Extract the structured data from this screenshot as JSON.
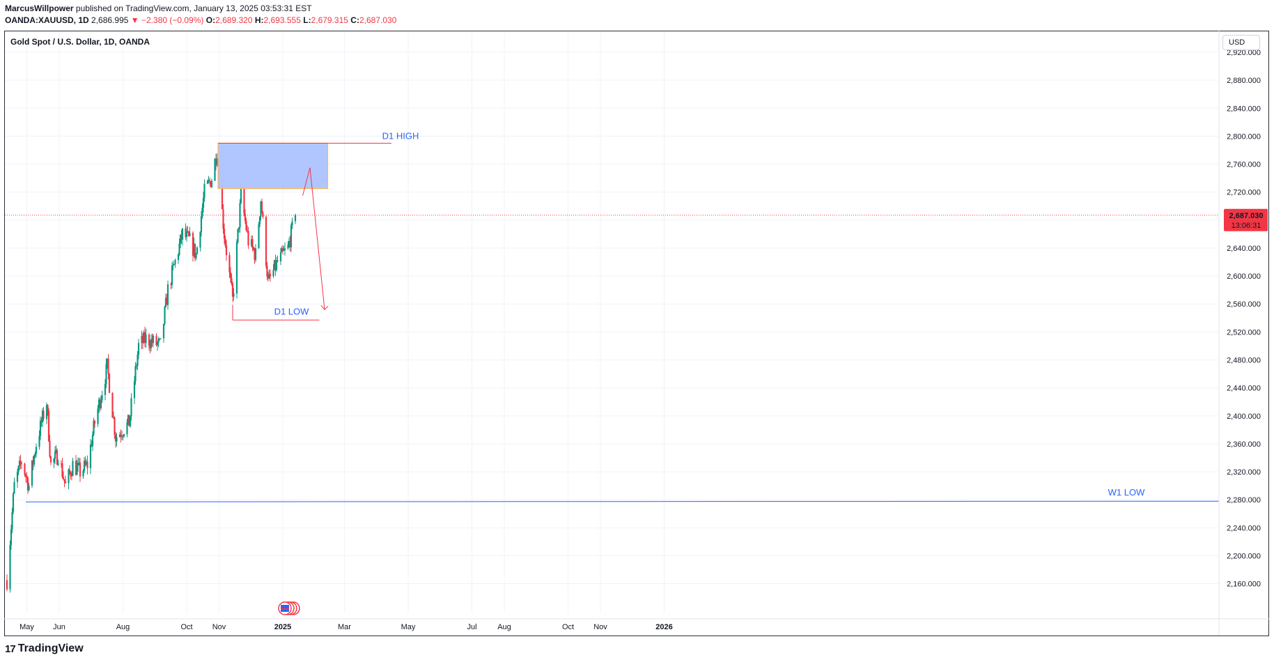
{
  "header": {
    "author": "MarcusWillpower",
    "published_text": "published on TradingView.com, January 13, 2025 03:53:31 EST",
    "symbol": "OANDA:XAUUSD, 1D",
    "price": "2,686.995",
    "change": "−2.380 (−0.09%)",
    "open_label": "O:",
    "open": "2,689.320",
    "high_label": "H:",
    "high": "2,693.555",
    "low_label": "L:",
    "low": "2,679.315",
    "close_label": "C:",
    "close": "2,687.030"
  },
  "chart_title": "Gold Spot / U.S. Dollar, 1D, OANDA",
  "currency_button": "USD",
  "price_tag": {
    "price": "2,687.030",
    "countdown": "13:06:31"
  },
  "brand": {
    "logo": "17",
    "name": "TradingView"
  },
  "colors": {
    "up": "#089981",
    "down": "#f23645",
    "accent": "#2962ff",
    "zone": "#adc3ff"
  },
  "chart_data": {
    "type": "candlestick",
    "title": "Gold Spot / U.S. Dollar, 1D, OANDA",
    "ylim": [
      2140,
      2940
    ],
    "y_ticks": [
      "2,160.000",
      "2,200.000",
      "2,240.000",
      "2,280.000",
      "2,320.000",
      "2,360.000",
      "2,400.000",
      "2,440.000",
      "2,480.000",
      "2,520.000",
      "2,560.000",
      "2,600.000",
      "2,640.000",
      "2,680.000",
      "2,720.000",
      "2,760.000",
      "2,800.000",
      "2,840.000",
      "2,880.000",
      "2,920.000"
    ],
    "x_ticks": [
      "May",
      "Jun",
      "Aug",
      "Oct",
      "Nov",
      "2025",
      "Mar",
      "May",
      "Jul",
      "Aug",
      "Oct",
      "Nov",
      "2026"
    ],
    "close_path": [
      {
        "date": "2024-04-12",
        "close": 2165
      },
      {
        "date": "2024-04-19",
        "close": 2300
      },
      {
        "date": "2024-04-26",
        "close": 2335
      },
      {
        "date": "2024-05-03",
        "close": 2300
      },
      {
        "date": "2024-05-10",
        "close": 2360
      },
      {
        "date": "2024-05-20",
        "close": 2420
      },
      {
        "date": "2024-05-24",
        "close": 2330
      },
      {
        "date": "2024-05-31",
        "close": 2345
      },
      {
        "date": "2024-06-07",
        "close": 2300
      },
      {
        "date": "2024-06-14",
        "close": 2330
      },
      {
        "date": "2024-06-21",
        "close": 2320
      },
      {
        "date": "2024-06-28",
        "close": 2330
      },
      {
        "date": "2024-07-05",
        "close": 2390
      },
      {
        "date": "2024-07-17",
        "close": 2470
      },
      {
        "date": "2024-07-25",
        "close": 2370
      },
      {
        "date": "2024-08-07",
        "close": 2390
      },
      {
        "date": "2024-08-16",
        "close": 2500
      },
      {
        "date": "2024-08-23",
        "close": 2510
      },
      {
        "date": "2024-09-06",
        "close": 2500
      },
      {
        "date": "2024-09-13",
        "close": 2580
      },
      {
        "date": "2024-09-20",
        "close": 2620
      },
      {
        "date": "2024-09-27",
        "close": 2660
      },
      {
        "date": "2024-10-04",
        "close": 2650
      },
      {
        "date": "2024-10-10",
        "close": 2630
      },
      {
        "date": "2024-10-18",
        "close": 2720
      },
      {
        "date": "2024-10-25",
        "close": 2740
      },
      {
        "date": "2024-10-30",
        "close": 2780
      },
      {
        "date": "2024-11-01",
        "close": 2740
      },
      {
        "date": "2024-11-06",
        "close": 2660
      },
      {
        "date": "2024-11-14",
        "close": 2565
      },
      {
        "date": "2024-11-22",
        "close": 2715
      },
      {
        "date": "2024-11-29",
        "close": 2650
      },
      {
        "date": "2024-12-06",
        "close": 2630
      },
      {
        "date": "2024-12-11",
        "close": 2710
      },
      {
        "date": "2024-12-18",
        "close": 2590
      },
      {
        "date": "2024-12-27",
        "close": 2620
      },
      {
        "date": "2025-01-06",
        "close": 2640
      },
      {
        "date": "2025-01-13",
        "close": 2687.03
      }
    ],
    "last_price": 2687.03
  },
  "annotations": {
    "d1_high": {
      "label": "D1 HIGH",
      "price": 2790
    },
    "d1_low": {
      "label": "D1 LOW",
      "price": 2537
    },
    "w1_low": {
      "label": "W1 LOW",
      "price": 2277
    },
    "zone": {
      "top": 2790,
      "bottom": 2725,
      "from": "2024-10-31",
      "to": "2025-02-13"
    },
    "projection": [
      {
        "date": "2025-01-20",
        "price": 2715
      },
      {
        "date": "2025-01-27",
        "price": 2755
      },
      {
        "date": "2025-02-10",
        "price": 2552
      }
    ]
  }
}
